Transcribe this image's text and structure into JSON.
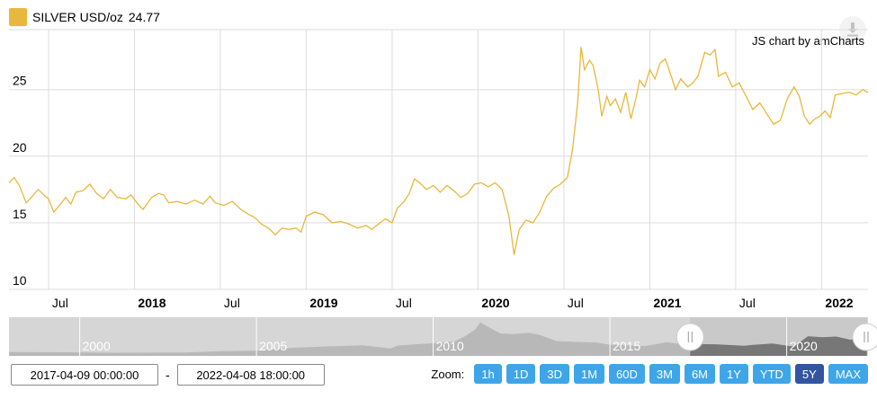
{
  "legend": {
    "label": "SILVER USD/oz",
    "value": "24.77",
    "color": "#e8b83c"
  },
  "credit": "JS chart by amCharts",
  "date_range": {
    "start": "2017-04-09 00:00:00",
    "end": "2022-04-08 18:00:00",
    "separator": "-"
  },
  "zoom": {
    "label": "Zoom:",
    "buttons": [
      "1h",
      "1D",
      "3D",
      "1M",
      "60D",
      "3M",
      "6M",
      "1Y",
      "YTD",
      "5Y",
      "MAX"
    ],
    "active": "5Y"
  },
  "scrollbar": {
    "labels": [
      "2000",
      "2005",
      "2010",
      "2015",
      "2020"
    ]
  },
  "chart_data": {
    "type": "line",
    "title": "",
    "xlabel": "",
    "ylabel": "",
    "ylim": [
      10,
      29.5
    ],
    "yticks": [
      10,
      15,
      20,
      25
    ],
    "xticks": [
      {
        "x": 2017.5,
        "label": "Jul",
        "bold": false
      },
      {
        "x": 2018.0,
        "label": "2018",
        "bold": true
      },
      {
        "x": 2018.5,
        "label": "Jul",
        "bold": false
      },
      {
        "x": 2019.0,
        "label": "2019",
        "bold": true
      },
      {
        "x": 2019.5,
        "label": "Jul",
        "bold": false
      },
      {
        "x": 2020.0,
        "label": "2020",
        "bold": true
      },
      {
        "x": 2020.5,
        "label": "Jul",
        "bold": false
      },
      {
        "x": 2021.0,
        "label": "2021",
        "bold": true
      },
      {
        "x": 2021.5,
        "label": "Jul",
        "bold": false
      },
      {
        "x": 2022.0,
        "label": "2022",
        "bold": true
      }
    ],
    "xlim": [
      2017.27,
      2022.27
    ],
    "grid": true,
    "series": [
      {
        "color": "#e8b83c",
        "points": [
          [
            2017.27,
            18.0
          ],
          [
            2017.3,
            18.4
          ],
          [
            2017.33,
            17.8
          ],
          [
            2017.37,
            16.5
          ],
          [
            2017.4,
            16.9
          ],
          [
            2017.44,
            17.5
          ],
          [
            2017.48,
            17.0
          ],
          [
            2017.5,
            16.8
          ],
          [
            2017.53,
            15.8
          ],
          [
            2017.57,
            16.4
          ],
          [
            2017.6,
            16.9
          ],
          [
            2017.63,
            16.4
          ],
          [
            2017.66,
            17.3
          ],
          [
            2017.7,
            17.4
          ],
          [
            2017.74,
            17.9
          ],
          [
            2017.78,
            17.2
          ],
          [
            2017.82,
            16.8
          ],
          [
            2017.86,
            17.5
          ],
          [
            2017.9,
            16.9
          ],
          [
            2017.95,
            16.8
          ],
          [
            2017.98,
            17.1
          ],
          [
            2018.02,
            16.4
          ],
          [
            2018.05,
            16.0
          ],
          [
            2018.1,
            16.9
          ],
          [
            2018.14,
            17.2
          ],
          [
            2018.17,
            17.1
          ],
          [
            2018.2,
            16.5
          ],
          [
            2018.25,
            16.6
          ],
          [
            2018.3,
            16.4
          ],
          [
            2018.35,
            16.7
          ],
          [
            2018.4,
            16.4
          ],
          [
            2018.44,
            17.0
          ],
          [
            2018.47,
            16.5
          ],
          [
            2018.52,
            16.3
          ],
          [
            2018.57,
            16.6
          ],
          [
            2018.62,
            16.0
          ],
          [
            2018.67,
            15.6
          ],
          [
            2018.7,
            15.4
          ],
          [
            2018.74,
            14.9
          ],
          [
            2018.78,
            14.6
          ],
          [
            2018.82,
            14.1
          ],
          [
            2018.86,
            14.6
          ],
          [
            2018.9,
            14.5
          ],
          [
            2018.94,
            14.6
          ],
          [
            2018.97,
            14.3
          ],
          [
            2019.0,
            15.5
          ],
          [
            2019.05,
            15.8
          ],
          [
            2019.1,
            15.6
          ],
          [
            2019.15,
            15.0
          ],
          [
            2019.2,
            15.1
          ],
          [
            2019.25,
            14.9
          ],
          [
            2019.3,
            14.6
          ],
          [
            2019.35,
            14.8
          ],
          [
            2019.38,
            14.5
          ],
          [
            2019.42,
            14.9
          ],
          [
            2019.46,
            15.3
          ],
          [
            2019.5,
            15.0
          ],
          [
            2019.53,
            16.1
          ],
          [
            2019.57,
            16.6
          ],
          [
            2019.6,
            17.2
          ],
          [
            2019.63,
            18.3
          ],
          [
            2019.66,
            18.0
          ],
          [
            2019.7,
            17.5
          ],
          [
            2019.74,
            17.8
          ],
          [
            2019.78,
            17.3
          ],
          [
            2019.82,
            17.8
          ],
          [
            2019.86,
            17.4
          ],
          [
            2019.9,
            16.9
          ],
          [
            2019.94,
            17.2
          ],
          [
            2019.98,
            17.9
          ],
          [
            2020.02,
            18.0
          ],
          [
            2020.06,
            17.7
          ],
          [
            2020.1,
            18.0
          ],
          [
            2020.14,
            17.5
          ],
          [
            2020.18,
            15.5
          ],
          [
            2020.21,
            12.6
          ],
          [
            2020.24,
            14.5
          ],
          [
            2020.28,
            15.2
          ],
          [
            2020.32,
            15.0
          ],
          [
            2020.36,
            15.8
          ],
          [
            2020.4,
            17.0
          ],
          [
            2020.44,
            17.6
          ],
          [
            2020.48,
            17.9
          ],
          [
            2020.52,
            18.4
          ],
          [
            2020.55,
            20.5
          ],
          [
            2020.58,
            24.0
          ],
          [
            2020.6,
            28.2
          ],
          [
            2020.62,
            26.5
          ],
          [
            2020.65,
            27.2
          ],
          [
            2020.67,
            26.8
          ],
          [
            2020.7,
            25.0
          ],
          [
            2020.72,
            23.0
          ],
          [
            2020.75,
            24.5
          ],
          [
            2020.77,
            23.8
          ],
          [
            2020.8,
            24.3
          ],
          [
            2020.83,
            23.3
          ],
          [
            2020.86,
            24.8
          ],
          [
            2020.89,
            22.8
          ],
          [
            2020.92,
            24.4
          ],
          [
            2020.94,
            25.7
          ],
          [
            2020.97,
            25.2
          ],
          [
            2021.0,
            26.5
          ],
          [
            2021.03,
            25.8
          ],
          [
            2021.06,
            27.0
          ],
          [
            2021.09,
            27.3
          ],
          [
            2021.12,
            26.2
          ],
          [
            2021.15,
            25.0
          ],
          [
            2021.18,
            25.8
          ],
          [
            2021.22,
            25.2
          ],
          [
            2021.25,
            25.5
          ],
          [
            2021.28,
            26.0
          ],
          [
            2021.32,
            27.8
          ],
          [
            2021.35,
            27.6
          ],
          [
            2021.38,
            28.0
          ],
          [
            2021.4,
            26.0
          ],
          [
            2021.44,
            26.3
          ],
          [
            2021.48,
            25.2
          ],
          [
            2021.52,
            25.5
          ],
          [
            2021.56,
            24.5
          ],
          [
            2021.6,
            23.5
          ],
          [
            2021.64,
            24.0
          ],
          [
            2021.68,
            23.2
          ],
          [
            2021.72,
            22.4
          ],
          [
            2021.76,
            22.7
          ],
          [
            2021.8,
            24.3
          ],
          [
            2021.84,
            25.2
          ],
          [
            2021.87,
            24.5
          ],
          [
            2021.9,
            23.0
          ],
          [
            2021.93,
            22.4
          ],
          [
            2021.96,
            22.8
          ],
          [
            2021.99,
            23.0
          ],
          [
            2022.02,
            23.4
          ],
          [
            2022.05,
            22.9
          ],
          [
            2022.08,
            24.6
          ],
          [
            2022.12,
            24.7
          ],
          [
            2022.16,
            24.8
          ],
          [
            2022.2,
            24.6
          ],
          [
            2022.24,
            25.0
          ],
          [
            2022.27,
            24.77
          ]
        ]
      }
    ],
    "navigator": {
      "xlim": [
        1998.0,
        2022.3
      ],
      "ticks": [
        2000,
        2005,
        2010,
        2015,
        2020
      ],
      "selected": [
        2017.27,
        2022.27
      ],
      "ylim": [
        0,
        55
      ],
      "points": [
        [
          1998.0,
          5.5
        ],
        [
          1999,
          5.2
        ],
        [
          2000,
          5.0
        ],
        [
          2001,
          4.4
        ],
        [
          2002,
          4.6
        ],
        [
          2003,
          4.9
        ],
        [
          2004,
          6.7
        ],
        [
          2005,
          7.3
        ],
        [
          2006,
          11.5
        ],
        [
          2007,
          13.4
        ],
        [
          2008,
          15.0
        ],
        [
          2008.8,
          10.5
        ],
        [
          2009,
          14.7
        ],
        [
          2010,
          18.0
        ],
        [
          2010.6,
          20.5
        ],
        [
          2010.9,
          28
        ],
        [
          2011.2,
          38
        ],
        [
          2011.33,
          48
        ],
        [
          2011.6,
          40
        ],
        [
          2011.9,
          32
        ],
        [
          2012.3,
          31
        ],
        [
          2012.7,
          33
        ],
        [
          2013.0,
          30
        ],
        [
          2013.5,
          21
        ],
        [
          2014,
          20
        ],
        [
          2014.6,
          19
        ],
        [
          2015,
          16
        ],
        [
          2015.5,
          15
        ],
        [
          2016,
          14
        ],
        [
          2016.6,
          19.5
        ],
        [
          2017,
          17
        ],
        [
          2017.5,
          16.8
        ],
        [
          2018,
          16.5
        ],
        [
          2018.8,
          14.5
        ],
        [
          2019,
          15.5
        ],
        [
          2019.6,
          17.5
        ],
        [
          2020.2,
          13
        ],
        [
          2020.6,
          28
        ],
        [
          2021,
          26.5
        ],
        [
          2021.4,
          27.5
        ],
        [
          2021.8,
          23
        ],
        [
          2022.27,
          24.77
        ]
      ]
    }
  }
}
